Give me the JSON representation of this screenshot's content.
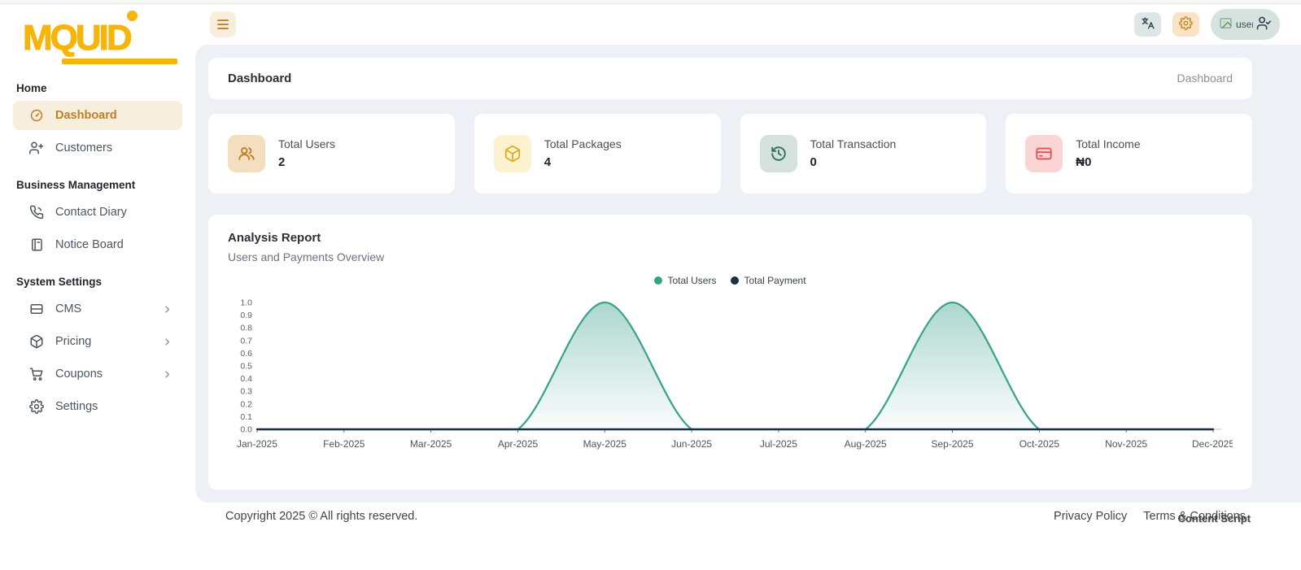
{
  "brand": {
    "name": "MQUID"
  },
  "topbar": {
    "avatar_alt": "user"
  },
  "sidebar": {
    "sections": [
      {
        "title": "Home",
        "items": [
          {
            "label": "Dashboard",
            "icon": "dashboard-icon",
            "active": true,
            "chevron": false
          },
          {
            "label": "Customers",
            "icon": "user-plus-icon",
            "active": false,
            "chevron": false
          }
        ]
      },
      {
        "title": "Business Management",
        "items": [
          {
            "label": "Contact Diary",
            "icon": "phone-icon",
            "active": false,
            "chevron": false
          },
          {
            "label": "Notice Board",
            "icon": "notice-board-icon",
            "active": false,
            "chevron": false
          }
        ]
      },
      {
        "title": "System Settings",
        "items": [
          {
            "label": "CMS",
            "icon": "cms-icon",
            "active": false,
            "chevron": true
          },
          {
            "label": "Pricing",
            "icon": "package-icon",
            "active": false,
            "chevron": true
          },
          {
            "label": "Coupons",
            "icon": "cart-icon",
            "active": false,
            "chevron": true
          },
          {
            "label": "Settings",
            "icon": "gear-icon",
            "active": false,
            "chevron": false
          }
        ]
      }
    ]
  },
  "page_header": {
    "title": "Dashboard",
    "breadcrumb": "Dashboard"
  },
  "stats": [
    {
      "label": "Total Users",
      "value": "2",
      "icon": "users-icon",
      "icon_bg": "#f3dec0",
      "icon_color": "#bb7e22"
    },
    {
      "label": "Total Packages",
      "value": "4",
      "icon": "package-icon",
      "icon_bg": "#fdf2cf",
      "icon_color": "#ddae1b"
    },
    {
      "label": "Total Transaction",
      "value": "0",
      "icon": "history-icon",
      "icon_bg": "#d5e1db",
      "icon_color": "#2c6e60"
    },
    {
      "label": "Total Income",
      "value": "₦0",
      "icon": "credit-card-icon",
      "icon_bg": "#fbd4d4",
      "icon_color": "#e05252"
    }
  ],
  "analysis": {
    "title": "Analysis Report",
    "subtitle": "Users and Payments Overview"
  },
  "chart_data": {
    "type": "area",
    "x": [
      "Jan-2025",
      "Feb-2025",
      "Mar-2025",
      "Apr-2025",
      "May-2025",
      "Jun-2025",
      "Jul-2025",
      "Aug-2025",
      "Sep-2025",
      "Oct-2025",
      "Nov-2025",
      "Dec-2025"
    ],
    "series": [
      {
        "name": "Total Users",
        "color": "#38a18b",
        "values": [
          0,
          0,
          0,
          0,
          1,
          0,
          0,
          0,
          1,
          0,
          0,
          0
        ],
        "fill": true
      },
      {
        "name": "Total Payment",
        "color": "#1d2f47",
        "values": [
          0,
          0,
          0,
          0,
          0,
          0,
          0,
          0,
          0,
          0,
          0,
          0
        ],
        "fill": false
      }
    ],
    "ylim": [
      0,
      1
    ],
    "ytick_step": 0.1,
    "legend_position": "top-center",
    "grid": false
  },
  "footer": {
    "copyright": "Copyright 2025 © All rights reserved.",
    "links": [
      "Privacy Policy",
      "Terms & Conditions"
    ],
    "overlay": "Content Script"
  }
}
